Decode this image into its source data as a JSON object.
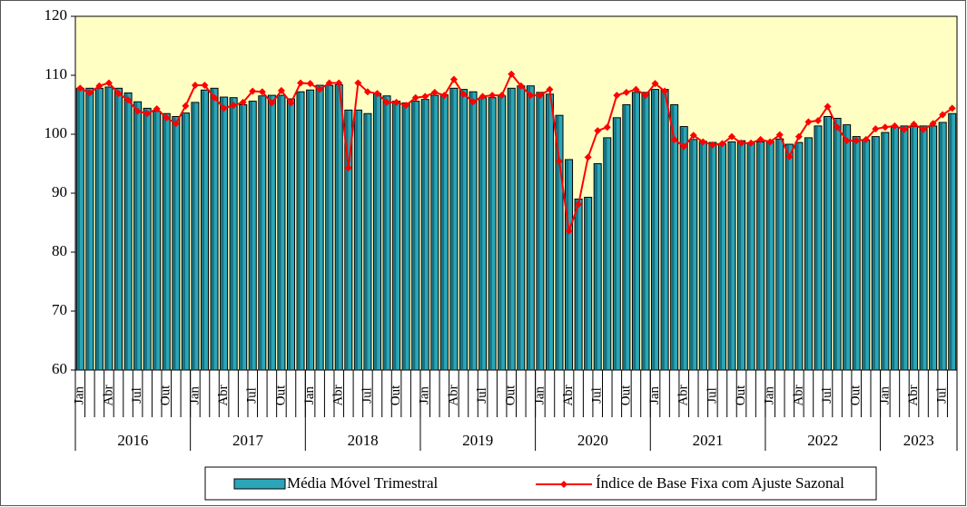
{
  "chart_data": {
    "type": "bar_line",
    "categories": [
      "Jan",
      null,
      null,
      "Abr",
      null,
      null,
      "Jul",
      null,
      null,
      "Out",
      null,
      null,
      "Jan",
      null,
      null,
      "Abr",
      null,
      null,
      "Jul",
      null,
      null,
      "Out",
      null,
      null,
      "Jan",
      null,
      null,
      "Abr",
      null,
      null,
      "Jul",
      null,
      null,
      "Out",
      null,
      null,
      "Jan",
      null,
      null,
      "Abr",
      null,
      null,
      "Jul",
      null,
      null,
      "Out",
      null,
      null,
      "Jan",
      null,
      null,
      "Abr",
      null,
      null,
      "Jul",
      null,
      null,
      "Out",
      null,
      null,
      "Jan",
      null,
      null,
      "Abr",
      null,
      null,
      "Jul",
      null,
      null,
      "Out",
      null,
      null,
      "Jan",
      null,
      null,
      "Abr",
      null,
      null,
      "Jul",
      null,
      null,
      "Out",
      null,
      null,
      "Jan",
      null,
      null,
      "Abr",
      null,
      null,
      "Jul",
      null
    ],
    "years": [
      "2016",
      "2017",
      "2018",
      "2019",
      "2020",
      "2021",
      "2022",
      "2023"
    ],
    "series": [
      {
        "name": "Média Móvel Trimestral",
        "type": "bar",
        "color": "#2aa6b8",
        "values": [
          107.8,
          107.8,
          107.8,
          108,
          107.8,
          107,
          105.5,
          104.4,
          103.9,
          103.5,
          103,
          103.6,
          105.4,
          107.5,
          107.8,
          106.3,
          106.2,
          105,
          105.6,
          106.5,
          106.6,
          106.6,
          106,
          107.2,
          107.5,
          108.3,
          108.3,
          108.4,
          104.1,
          104.1,
          103.5,
          106.9,
          106.5,
          105.6,
          105.3,
          105.6,
          105.9,
          106.6,
          106.7,
          107.8,
          107.6,
          107.2,
          106.2,
          106.2,
          106.5,
          107.8,
          108.2,
          108.2,
          107.1,
          106.8,
          103.2,
          95.7,
          89,
          89.3,
          95,
          99.4,
          102.8,
          105,
          107.1,
          107.1,
          107.6,
          107.6,
          105,
          101.3,
          99.1,
          98.8,
          98.6,
          98.4,
          98.7,
          98.9,
          98.5,
          98.7,
          98.8,
          99.2,
          98.3,
          98.6,
          99.4,
          101.4,
          103,
          102.7,
          101.6,
          99.6,
          99,
          99.6,
          100.3,
          101.2,
          101.4,
          101.3,
          101.4,
          101.4,
          102,
          103.5
        ]
      },
      {
        "name": "Índice de Base Fixa com Ajuste Sazonal",
        "type": "line",
        "color": "#ff0000",
        "values": [
          107.8,
          107,
          108.2,
          108.7,
          106.9,
          105.8,
          103.9,
          103.5,
          104.3,
          102.8,
          101.8,
          104.8,
          108.3,
          108.3,
          106.2,
          104.4,
          104.9,
          105.4,
          107.3,
          107.2,
          105.3,
          107.4,
          105.3,
          108.7,
          108.6,
          107.6,
          108.7,
          108.7,
          94.3,
          108.7,
          107.2,
          106.9,
          105.4,
          105.4,
          104.9,
          106.2,
          106.4,
          107.1,
          106.6,
          109.3,
          106.8,
          105.5,
          106.4,
          106.6,
          106.6,
          110.2,
          108.2,
          106.6,
          106.6,
          107.6,
          95.4,
          83.6,
          88.1,
          96.1,
          100.6,
          101.2,
          106.6,
          107.1,
          107.6,
          106.6,
          108.6,
          107.3,
          99.1,
          97.9,
          99.8,
          98.7,
          98.2,
          98.4,
          99.6,
          98.5,
          98.5,
          99.1,
          98.7,
          99.9,
          96.2,
          99.6,
          102.1,
          102.3,
          104.7,
          101.2,
          98.9,
          98.9,
          99.1,
          100.9,
          101.2,
          101.4,
          100.8,
          101.7,
          100.8,
          101.8,
          103.3,
          104.4
        ]
      }
    ],
    "ylim": [
      60,
      120
    ],
    "yticks": [
      60,
      70,
      80,
      90,
      100,
      110,
      120
    ],
    "plot_background": "#ffffc4",
    "legend": "bottom"
  }
}
